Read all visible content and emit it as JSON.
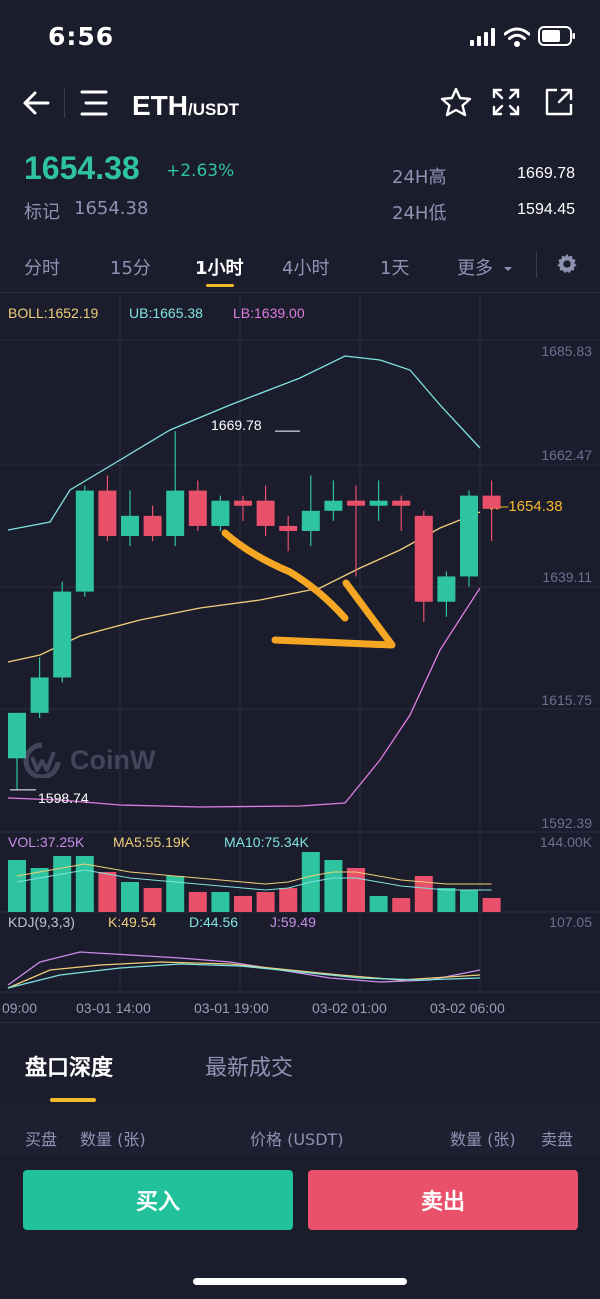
{
  "status": {
    "time": "6:56"
  },
  "header": {
    "base": "ETH",
    "quote": "/USDT"
  },
  "price": {
    "last": "1654.38",
    "change_pct": "+2.63%",
    "mark_label": "标记",
    "mark_value": "1654.38",
    "high_label": "24H高",
    "high_value": "1669.78",
    "low_label": "24H低",
    "low_value": "1594.45"
  },
  "intervals": [
    {
      "label": "分时"
    },
    {
      "label": "15分"
    },
    {
      "label": "1小时"
    },
    {
      "label": "4小时"
    },
    {
      "label": "1天"
    },
    {
      "label": "更多"
    }
  ],
  "indicators": {
    "boll": "BOLL:1652.19",
    "ub": "UB:1665.38",
    "lb": "LB:1639.00",
    "vol": "VOL:37.25K",
    "ma5": "MA5:55.19K",
    "ma10": "MA10:75.34K",
    "kdj": "KDJ(9,3,3)",
    "k": "K:49.54",
    "d": "D:44.56",
    "j": "J:59.49"
  },
  "axis": {
    "price_ticks": [
      "1685.83",
      "1662.47",
      "1639.11",
      "1615.75",
      "1592.39"
    ],
    "current_price_tag": "1654.38",
    "vol_max": "144.00K",
    "kdj_max": "107.05",
    "x_labels": [
      "09:00",
      "03-01 14:00",
      "03-01 19:00",
      "03-02 01:00",
      "03-02 06:00"
    ],
    "high_marker": "1669.78",
    "low_marker": "1598.74"
  },
  "watermark": "CoinW",
  "colors": {
    "up": "#2ec4a0",
    "down": "#e9506a",
    "accent": "#f5b92d",
    "ub": "#7fe3e0",
    "lb": "#e07ee0",
    "mid": "#f0cf7a",
    "annotation": "#f5a623"
  },
  "bottom": {
    "tab_depth": "盘口深度",
    "tab_trades": "最新成交",
    "col_bid": "买盘",
    "col_qty_left": "数量 (张)",
    "col_price": "价格 (USDT)",
    "col_qty_right": "数量 (张)",
    "col_ask": "卖盘",
    "buy_label": "买入",
    "sell_label": "卖出"
  },
  "chart_data": {
    "type": "candlestick",
    "interval": "1小时",
    "ylim": [
      1592.39,
      1685.83
    ],
    "candles": [
      {
        "o": 1605,
        "h": 1614,
        "l": 1598.74,
        "c": 1614
      },
      {
        "o": 1614,
        "h": 1625,
        "l": 1613,
        "c": 1621
      },
      {
        "o": 1621,
        "h": 1640,
        "l": 1620,
        "c": 1638
      },
      {
        "o": 1638,
        "h": 1659,
        "l": 1637,
        "c": 1658
      },
      {
        "o": 1658,
        "h": 1661,
        "l": 1648,
        "c": 1649
      },
      {
        "o": 1649,
        "h": 1658,
        "l": 1647,
        "c": 1653
      },
      {
        "o": 1653,
        "h": 1655,
        "l": 1648,
        "c": 1649
      },
      {
        "o": 1649,
        "h": 1669.78,
        "l": 1647,
        "c": 1658
      },
      {
        "o": 1658,
        "h": 1660,
        "l": 1650,
        "c": 1651
      },
      {
        "o": 1651,
        "h": 1657,
        "l": 1650,
        "c": 1656
      },
      {
        "o": 1656,
        "h": 1657,
        "l": 1652,
        "c": 1655
      },
      {
        "o": 1656,
        "h": 1659,
        "l": 1649,
        "c": 1651
      },
      {
        "o": 1651,
        "h": 1653,
        "l": 1646,
        "c": 1650
      },
      {
        "o": 1650,
        "h": 1661,
        "l": 1647,
        "c": 1654
      },
      {
        "o": 1654,
        "h": 1660,
        "l": 1652,
        "c": 1656
      },
      {
        "o": 1656,
        "h": 1659,
        "l": 1641,
        "c": 1655
      },
      {
        "o": 1655,
        "h": 1660,
        "l": 1652,
        "c": 1656
      },
      {
        "o": 1656,
        "h": 1657,
        "l": 1650,
        "c": 1655
      },
      {
        "o": 1653,
        "h": 1654,
        "l": 1632,
        "c": 1636
      },
      {
        "o": 1636,
        "h": 1642,
        "l": 1633,
        "c": 1641
      },
      {
        "o": 1641,
        "h": 1658,
        "l": 1639,
        "c": 1657
      },
      {
        "o": 1657,
        "h": 1660,
        "l": 1648,
        "c": 1654.38
      }
    ],
    "volume": [
      26,
      22,
      28,
      28,
      20,
      15,
      12,
      18,
      10,
      10,
      8,
      10,
      12,
      30,
      26,
      22,
      8,
      7,
      18,
      12,
      11,
      7
    ],
    "vol_ma": [
      18,
      20,
      22,
      24,
      22,
      20,
      19,
      18,
      17,
      16,
      15,
      14,
      15,
      18,
      20,
      20,
      18,
      16,
      15,
      14,
      14,
      14
    ]
  }
}
